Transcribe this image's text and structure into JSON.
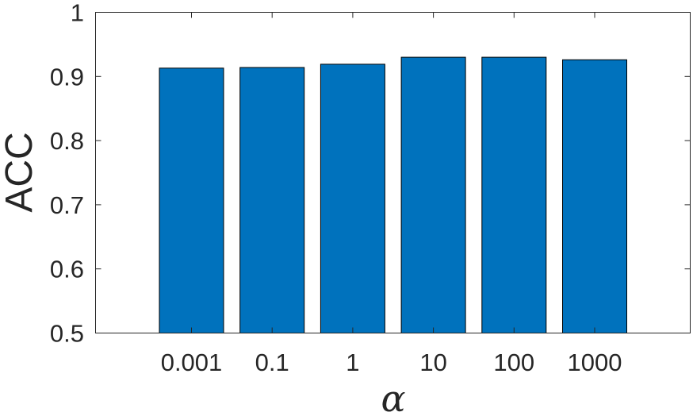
{
  "chart_data": {
    "type": "bar",
    "categories": [
      "0.001",
      "0.1",
      "1",
      "10",
      "100",
      "1000"
    ],
    "values": [
      0.913,
      0.914,
      0.919,
      0.93,
      0.93,
      0.926
    ],
    "xlabel": "α",
    "ylabel": "ACC",
    "ylim": [
      0.5,
      1
    ],
    "yticks": [
      "0.5",
      "0.6",
      "0.7",
      "0.8",
      "0.9",
      "1"
    ],
    "grid": false,
    "bar_color": "#0072BD"
  }
}
